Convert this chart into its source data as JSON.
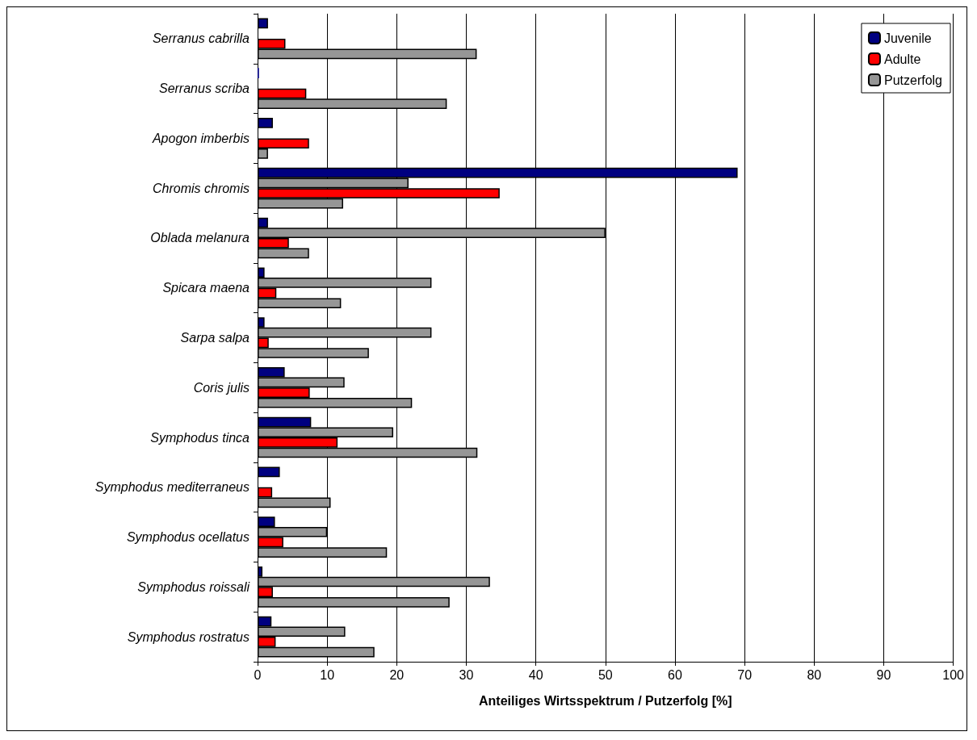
{
  "chart_data": {
    "type": "bar",
    "orientation": "horizontal",
    "xlabel": "Anteiliges Wirtsspektrum / Putzerfolg [%]",
    "categories": [
      "Serranus cabrilla",
      "Serranus scriba",
      "Apogon imberbis",
      "Chromis chromis",
      "Oblada melanura",
      "Spicara maena",
      "Sarpa salpa",
      "Coris julis",
      "Symphodus tinca",
      "Symphodus mediterraneus",
      "Symphodus ocellatus",
      "Symphodus roissali",
      "Symphodus rostratus"
    ],
    "series": [
      {
        "name": "Juvenile",
        "color": "#000080",
        "values": [
          1.5,
          0.2,
          2.2,
          69,
          1.5,
          1.0,
          1.0,
          3.9,
          7.7,
          3.2,
          2.5,
          0.7,
          2.0
        ]
      },
      {
        "color": "#969696",
        "values": [
          null,
          null,
          null,
          21.7,
          50,
          25,
          25,
          12.5,
          19.5,
          null,
          10,
          33.4,
          12.6
        ]
      },
      {
        "name": "Adulte",
        "color": "#ff0000",
        "values": [
          4.0,
          7.0,
          7.4,
          34.8,
          4.5,
          2.7,
          1.6,
          7.5,
          11.5,
          2.1,
          3.7,
          2.2,
          2.6
        ]
      },
      {
        "name": "Putzerfolg",
        "color": "#969696",
        "values": [
          31.5,
          27.2,
          1.5,
          12.3,
          7.4,
          12.0,
          16.0,
          22.2,
          31.6,
          10.5,
          18.6,
          27.6,
          16.8
        ]
      }
    ],
    "xlim": [
      0,
      100
    ],
    "xticks": [
      0,
      10,
      20,
      30,
      40,
      50,
      60,
      70,
      80,
      90,
      100
    ],
    "grid": "x",
    "legend": "top right"
  }
}
